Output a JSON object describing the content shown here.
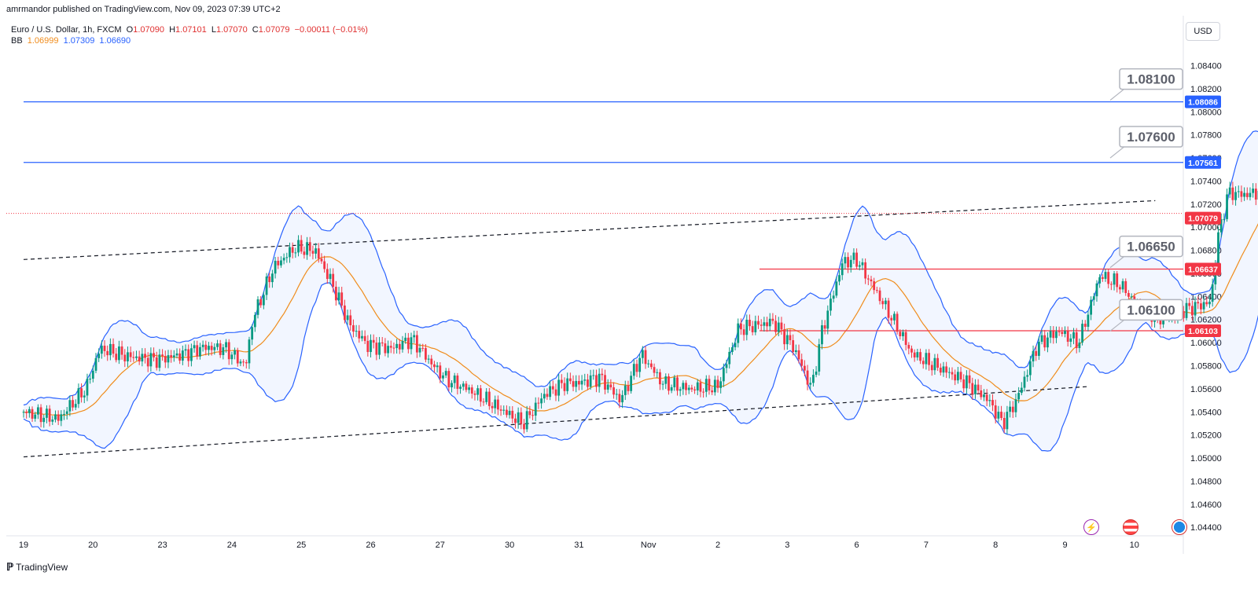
{
  "publisher": "amrmandor published on TradingView.com, Nov 09, 2023 07:39 UTC+2",
  "legend": {
    "symbol": "Euro / U.S. Dollar, 1h, FXCM",
    "open_label": "O",
    "open": "1.07090",
    "high_label": "H",
    "high": "1.07101",
    "low_label": "L",
    "low": "1.07070",
    "close_label": "C",
    "close": "1.07079",
    "change": "−0.00011 (−0.01%)",
    "bb_label": "BB",
    "bb_basis": "1.06999",
    "bb_upper": "1.07309",
    "bb_lower": "1.06690"
  },
  "currency": "USD",
  "footer_brand": "TradingView",
  "colors": {
    "up": "#089981",
    "down": "#f23645",
    "bb_band": "#2962ff",
    "bb_basis": "#f08c1c",
    "resistance": "#2962ff",
    "support": "#f23645"
  },
  "icons": [
    "lightning-icon",
    "us-flag-icon",
    "globe-icon"
  ],
  "chart_data": {
    "type": "candlestick",
    "y_axis": {
      "ticks": [
        "1.08400",
        "1.08200",
        "1.08000",
        "1.07800",
        "1.07600",
        "1.07400",
        "1.07200",
        "1.07000",
        "1.06800",
        "1.06600",
        "1.06400",
        "1.06200",
        "1.06000",
        "1.05800",
        "1.05600",
        "1.05400",
        "1.05200",
        "1.05000",
        "1.04800",
        "1.04600",
        "1.04400"
      ],
      "range": [
        1.0434,
        1.0856
      ]
    },
    "x_axis": {
      "ticks": [
        "19",
        "20",
        "23",
        "24",
        "25",
        "26",
        "27",
        "30",
        "31",
        "Nov",
        "2",
        "3",
        "6",
        "7",
        "8",
        "9",
        "10"
      ]
    },
    "price_labels": [
      {
        "text": "1.08086",
        "value": 1.08086,
        "color": "#2962ff"
      },
      {
        "text": "1.07561",
        "value": 1.07561,
        "color": "#2962ff"
      },
      {
        "text": "1.07079",
        "value": 1.07079,
        "color": "#f23645"
      },
      {
        "text": "1.06637",
        "value": 1.06637,
        "color": "#f23645"
      },
      {
        "text": "1.06103",
        "value": 1.06103,
        "color": "#f23645"
      }
    ],
    "horizontal_lines": [
      {
        "value": 1.08086,
        "color": "#2962ff",
        "from_day": 0
      },
      {
        "value": 1.07561,
        "color": "#2962ff",
        "from_day": 0
      },
      {
        "value": 1.06637,
        "color": "#f23645",
        "from_day": 10.6
      },
      {
        "value": 1.06103,
        "color": "#f23645",
        "from_day": 10.6
      }
    ],
    "callouts": [
      {
        "text": "1.08100",
        "value": 1.081
      },
      {
        "text": "1.07600",
        "value": 1.076
      },
      {
        "text": "1.06650",
        "value": 1.0665
      },
      {
        "text": "1.06100",
        "value": 1.061
      }
    ],
    "trendlines": [
      {
        "from": [
          0,
          1.0672
        ],
        "to": [
          16.3,
          1.0723
        ]
      },
      {
        "from": [
          0,
          1.0501
        ],
        "to": [
          15.35,
          1.0562
        ]
      }
    ],
    "key_closes": [
      [
        0,
        1.054
      ],
      [
        0.5,
        1.0534
      ],
      [
        0.9,
        1.056
      ],
      [
        1.1,
        1.0595
      ],
      [
        1.5,
        1.0588
      ],
      [
        1.9,
        1.0585
      ],
      [
        2.3,
        1.059
      ],
      [
        2.6,
        1.0596
      ],
      [
        2.9,
        1.0595
      ],
      [
        3.2,
        1.058
      ],
      [
        3.3,
        1.062
      ],
      [
        3.6,
        1.0665
      ],
      [
        3.9,
        1.0682
      ],
      [
        4.2,
        1.068
      ],
      [
        4.45,
        1.065
      ],
      [
        4.7,
        1.0615
      ],
      [
        4.95,
        1.0598
      ],
      [
        5.3,
        1.0595
      ],
      [
        5.6,
        1.0603
      ],
      [
        5.9,
        1.058
      ],
      [
        6.1,
        1.0568
      ],
      [
        6.4,
        1.056
      ],
      [
        6.8,
        1.0545
      ],
      [
        7.2,
        1.053
      ],
      [
        7.5,
        1.0555
      ],
      [
        7.8,
        1.0565
      ],
      [
        8.0,
        1.0565
      ],
      [
        8.3,
        1.057
      ],
      [
        8.6,
        1.055
      ],
      [
        8.9,
        1.059
      ],
      [
        9.2,
        1.0565
      ],
      [
        9.6,
        1.056
      ],
      [
        10.0,
        1.0562
      ],
      [
        10.3,
        1.0612
      ],
      [
        10.8,
        1.0618
      ],
      [
        11.1,
        1.0595
      ],
      [
        11.35,
        1.056
      ],
      [
        11.5,
        1.061
      ],
      [
        11.8,
        1.067
      ],
      [
        12.0,
        1.0672
      ],
      [
        12.5,
        1.0622
      ],
      [
        12.8,
        1.059
      ],
      [
        13.2,
        1.0578
      ],
      [
        13.6,
        1.0565
      ],
      [
        13.9,
        1.055
      ],
      [
        14.1,
        1.053
      ],
      [
        14.3,
        1.055
      ],
      [
        14.6,
        1.0598
      ],
      [
        14.9,
        1.061
      ],
      [
        15.2,
        1.06
      ],
      [
        15.5,
        1.0658
      ],
      [
        15.8,
        1.065
      ],
      [
        16.1,
        1.0628
      ],
      [
        16.4,
        1.062
      ],
      [
        16.8,
        1.063
      ],
      [
        17.1,
        1.0635
      ],
      [
        17.2,
        1.069
      ],
      [
        17.35,
        1.073
      ],
      [
        17.6,
        1.0728
      ],
      [
        17.9,
        1.0732
      ],
      [
        18.3,
        1.074
      ],
      [
        18.6,
        1.0752
      ],
      [
        18.9,
        1.0748
      ],
      [
        19.1,
        1.0738
      ],
      [
        19.4,
        1.0722
      ],
      [
        19.7,
        1.071
      ],
      [
        20.0,
        1.07
      ],
      [
        20.3,
        1.068
      ],
      [
        20.6,
        1.0672
      ],
      [
        20.9,
        1.0697
      ],
      [
        21.2,
        1.0698
      ],
      [
        21.5,
        1.0688
      ],
      [
        21.8,
        1.0675
      ],
      [
        22.0,
        1.0668
      ],
      [
        22.3,
        1.07
      ],
      [
        22.5,
        1.0712
      ],
      [
        22.8,
        1.071
      ],
      [
        23.0,
        1.0711
      ],
      [
        23.25,
        1.07079
      ]
    ]
  }
}
